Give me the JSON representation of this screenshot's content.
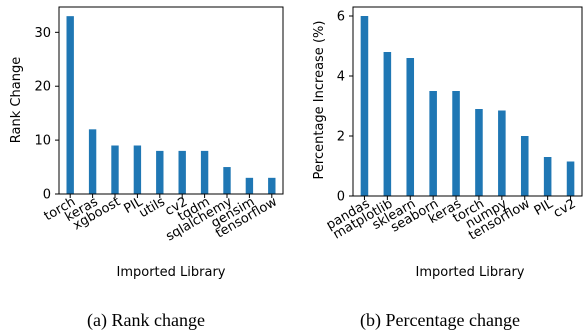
{
  "colors": {
    "bar": "#1f77b4",
    "axis": "#000000",
    "background": "#ffffff"
  },
  "chart_data": [
    {
      "type": "bar",
      "caption": "(a) Rank change",
      "xlabel": "Imported Library",
      "ylabel": "Rank Change",
      "categories": [
        "torch",
        "keras",
        "xgboost",
        "PIL",
        "utils",
        "cv2",
        "tqdm",
        "sqlalchemy",
        "gensim",
        "tensorflow"
      ],
      "values": [
        33,
        12,
        9,
        9,
        8,
        8,
        8,
        5,
        3,
        3
      ],
      "ylim": [
        0,
        34.7
      ],
      "yticks": [
        0,
        10,
        20,
        30
      ],
      "grid": false,
      "legend": "none"
    },
    {
      "type": "bar",
      "caption": "(b) Percentage change",
      "xlabel": "Imported Library",
      "ylabel": "Percentage Increase (%)",
      "categories": [
        "pandas",
        "matplotlib",
        "sklearn",
        "seaborn",
        "keras",
        "torch",
        "numpy",
        "tensorflow",
        "PIL",
        "cv2"
      ],
      "values": [
        6.0,
        4.8,
        4.6,
        3.5,
        3.5,
        2.9,
        2.85,
        2.0,
        1.3,
        1.15
      ],
      "ylim": [
        0,
        6.3
      ],
      "yticks": [
        0,
        2,
        4,
        6
      ],
      "grid": false,
      "legend": "none"
    }
  ]
}
